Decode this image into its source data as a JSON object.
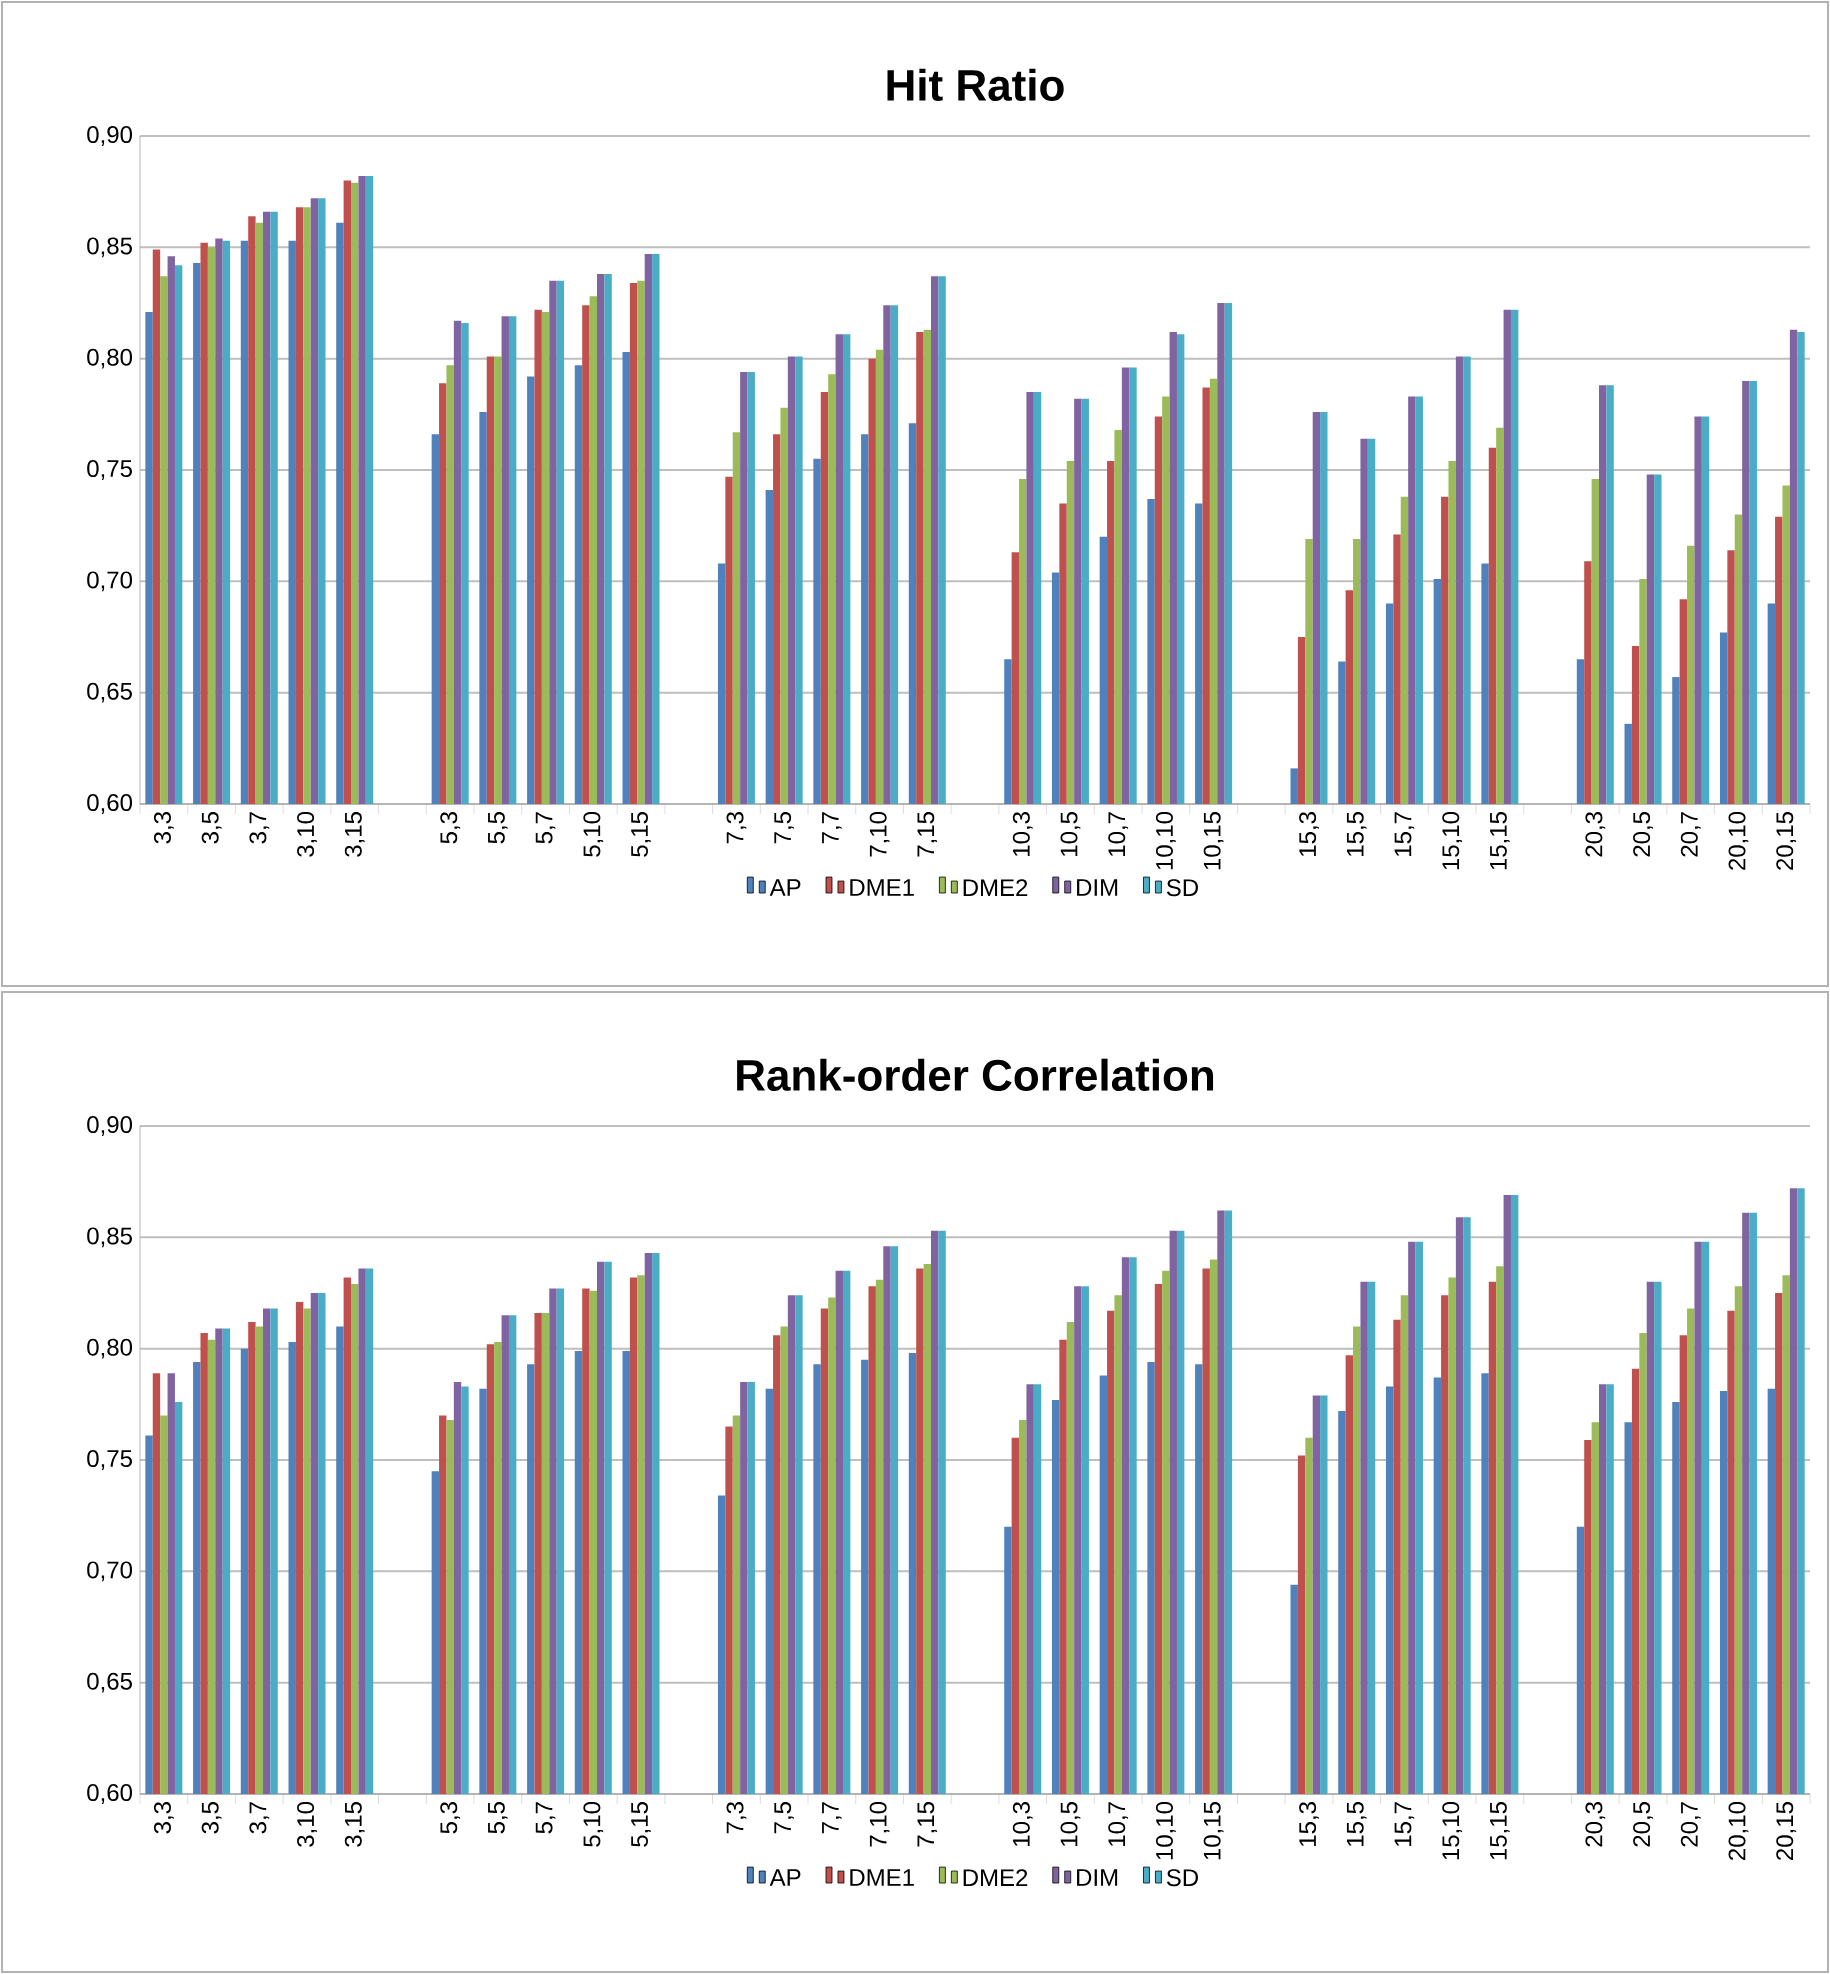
{
  "chart_data": [
    {
      "type": "bar",
      "title": "Hit Ratio",
      "categories": [
        "3,3",
        "3,5",
        "3,7",
        "3,10",
        "3,15",
        null,
        "5,3",
        "5,5",
        "5,7",
        "5,10",
        "5,15",
        null,
        "7,3",
        "7,5",
        "7,7",
        "7,10",
        "7,15",
        null,
        "10,3",
        "10,5",
        "10,7",
        "10,10",
        "10,15",
        null,
        "15,3",
        "15,5",
        "15,7",
        "15,10",
        "15,15",
        null,
        "20,3",
        "20,5",
        "20,7",
        "20,10",
        "20,15"
      ],
      "series": [
        {
          "name": "AP",
          "color": "#4f81bd",
          "values": [
            0.821,
            0.843,
            0.853,
            0.853,
            0.861,
            null,
            0.766,
            0.776,
            0.792,
            0.797,
            0.803,
            null,
            0.708,
            0.741,
            0.755,
            0.766,
            0.771,
            null,
            0.665,
            0.704,
            0.72,
            0.737,
            0.735,
            null,
            0.616,
            0.664,
            0.69,
            0.701,
            0.708,
            null,
            0.665,
            0.636,
            0.657,
            0.677,
            0.69
          ]
        },
        {
          "name": "DME1",
          "color": "#c0504d",
          "values": [
            0.849,
            0.852,
            0.864,
            0.868,
            0.88,
            null,
            0.789,
            0.801,
            0.822,
            0.824,
            0.834,
            null,
            0.747,
            0.766,
            0.785,
            0.8,
            0.812,
            null,
            0.713,
            0.735,
            0.754,
            0.774,
            0.787,
            null,
            0.675,
            0.696,
            0.721,
            0.738,
            0.76,
            null,
            0.709,
            0.671,
            0.692,
            0.714,
            0.729
          ]
        },
        {
          "name": "DME2",
          "color": "#9bbb59",
          "values": [
            0.837,
            0.85,
            0.861,
            0.868,
            0.879,
            null,
            0.797,
            0.801,
            0.821,
            0.828,
            0.835,
            null,
            0.767,
            0.778,
            0.793,
            0.804,
            0.813,
            null,
            0.746,
            0.754,
            0.768,
            0.783,
            0.791,
            null,
            0.719,
            0.719,
            0.738,
            0.754,
            0.769,
            null,
            0.746,
            0.701,
            0.716,
            0.73,
            0.743
          ]
        },
        {
          "name": "DIM",
          "color": "#8064a2",
          "values": [
            0.846,
            0.854,
            0.866,
            0.872,
            0.882,
            null,
            0.817,
            0.819,
            0.835,
            0.838,
            0.847,
            null,
            0.794,
            0.801,
            0.811,
            0.824,
            0.837,
            null,
            0.785,
            0.782,
            0.796,
            0.812,
            0.825,
            null,
            0.776,
            0.764,
            0.783,
            0.801,
            0.822,
            null,
            0.788,
            0.748,
            0.774,
            0.79,
            0.813
          ]
        },
        {
          "name": "SD",
          "color": "#4bacc6",
          "values": [
            0.842,
            0.853,
            0.866,
            0.872,
            0.882,
            null,
            0.816,
            0.819,
            0.835,
            0.838,
            0.847,
            null,
            0.794,
            0.801,
            0.811,
            0.824,
            0.837,
            null,
            0.785,
            0.782,
            0.796,
            0.811,
            0.825,
            null,
            0.776,
            0.764,
            0.783,
            0.801,
            0.822,
            null,
            0.788,
            0.748,
            0.774,
            0.79,
            0.812
          ]
        }
      ],
      "ylim": [
        0.6,
        0.9
      ],
      "yticks": [
        {
          "value": 0.6,
          "label": "0,60"
        },
        {
          "value": 0.65,
          "label": "0,65"
        },
        {
          "value": 0.7,
          "label": "0,70"
        },
        {
          "value": 0.75,
          "label": "0,75"
        },
        {
          "value": 0.8,
          "label": "0,80"
        },
        {
          "value": 0.85,
          "label": "0,85"
        },
        {
          "value": 0.9,
          "label": "0,90"
        }
      ],
      "grid": "y",
      "legend": "bottom"
    },
    {
      "type": "bar",
      "title": "Rank-order Correlation",
      "categories": [
        "3,3",
        "3,5",
        "3,7",
        "3,10",
        "3,15",
        null,
        "5,3",
        "5,5",
        "5,7",
        "5,10",
        "5,15",
        null,
        "7,3",
        "7,5",
        "7,7",
        "7,10",
        "7,15",
        null,
        "10,3",
        "10,5",
        "10,7",
        "10,10",
        "10,15",
        null,
        "15,3",
        "15,5",
        "15,7",
        "15,10",
        "15,15",
        null,
        "20,3",
        "20,5",
        "20,7",
        "20,10",
        "20,15"
      ],
      "series": [
        {
          "name": "AP",
          "color": "#4f81bd",
          "values": [
            0.761,
            0.794,
            0.8,
            0.803,
            0.81,
            null,
            0.745,
            0.782,
            0.793,
            0.799,
            0.799,
            null,
            0.734,
            0.782,
            0.793,
            0.795,
            0.798,
            null,
            0.72,
            0.777,
            0.788,
            0.794,
            0.793,
            null,
            0.694,
            0.772,
            0.783,
            0.787,
            0.789,
            null,
            0.72,
            0.767,
            0.776,
            0.781,
            0.782
          ]
        },
        {
          "name": "DME1",
          "color": "#c0504d",
          "values": [
            0.789,
            0.807,
            0.812,
            0.821,
            0.832,
            null,
            0.77,
            0.802,
            0.816,
            0.827,
            0.832,
            null,
            0.765,
            0.806,
            0.818,
            0.828,
            0.836,
            null,
            0.76,
            0.804,
            0.817,
            0.829,
            0.836,
            null,
            0.752,
            0.797,
            0.813,
            0.824,
            0.83,
            null,
            0.759,
            0.791,
            0.806,
            0.817,
            0.825
          ]
        },
        {
          "name": "DME2",
          "color": "#9bbb59",
          "values": [
            0.77,
            0.804,
            0.81,
            0.818,
            0.829,
            null,
            0.768,
            0.803,
            0.816,
            0.826,
            0.833,
            null,
            0.77,
            0.81,
            0.823,
            0.831,
            0.838,
            null,
            0.768,
            0.812,
            0.824,
            0.835,
            0.84,
            null,
            0.76,
            0.81,
            0.824,
            0.832,
            0.837,
            null,
            0.767,
            0.807,
            0.818,
            0.828,
            0.833
          ]
        },
        {
          "name": "DIM",
          "color": "#8064a2",
          "values": [
            0.789,
            0.809,
            0.818,
            0.825,
            0.836,
            null,
            0.785,
            0.815,
            0.827,
            0.839,
            0.843,
            null,
            0.785,
            0.824,
            0.835,
            0.846,
            0.853,
            null,
            0.784,
            0.828,
            0.841,
            0.853,
            0.862,
            null,
            0.779,
            0.83,
            0.848,
            0.859,
            0.869,
            null,
            0.784,
            0.83,
            0.848,
            0.861,
            0.872
          ]
        },
        {
          "name": "SD",
          "color": "#4bacc6",
          "values": [
            0.776,
            0.809,
            0.818,
            0.825,
            0.836,
            null,
            0.783,
            0.815,
            0.827,
            0.839,
            0.843,
            null,
            0.785,
            0.824,
            0.835,
            0.846,
            0.853,
            null,
            0.784,
            0.828,
            0.841,
            0.853,
            0.862,
            null,
            0.779,
            0.83,
            0.848,
            0.859,
            0.869,
            null,
            0.784,
            0.83,
            0.848,
            0.861,
            0.872
          ]
        }
      ],
      "ylim": [
        0.6,
        0.9
      ],
      "yticks": [
        {
          "value": 0.6,
          "label": "0,60"
        },
        {
          "value": 0.65,
          "label": "0,65"
        },
        {
          "value": 0.7,
          "label": "0,70"
        },
        {
          "value": 0.75,
          "label": "0,75"
        },
        {
          "value": 0.8,
          "label": "0,80"
        },
        {
          "value": 0.85,
          "label": "0,85"
        },
        {
          "value": 0.9,
          "label": "0,90"
        }
      ],
      "grid": "y",
      "legend": "bottom"
    }
  ]
}
